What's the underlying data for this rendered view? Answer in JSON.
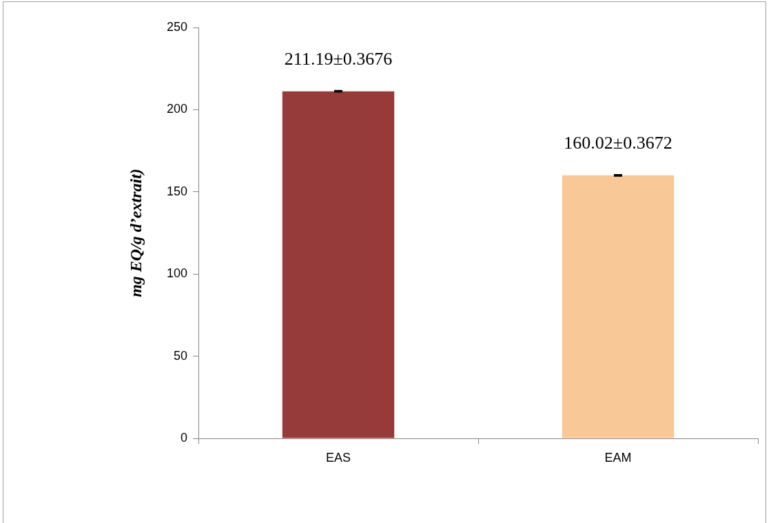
{
  "chart_data": {
    "type": "bar",
    "ylabel": "mg EQ/g d’extrait)",
    "categories": [
      "EAS",
      "EAM"
    ],
    "values": [
      211.19,
      160.02
    ],
    "colors": [
      "#963b3a",
      "#f9c897"
    ],
    "errors": [
      0.3676,
      0.3672
    ],
    "value_labels": [
      "211.19±0.3676",
      "160.02±0.3672"
    ],
    "ylim": [
      0,
      250
    ],
    "yticks": [
      0,
      50,
      100,
      150,
      200,
      250
    ],
    "grid": false,
    "legend": false
  }
}
